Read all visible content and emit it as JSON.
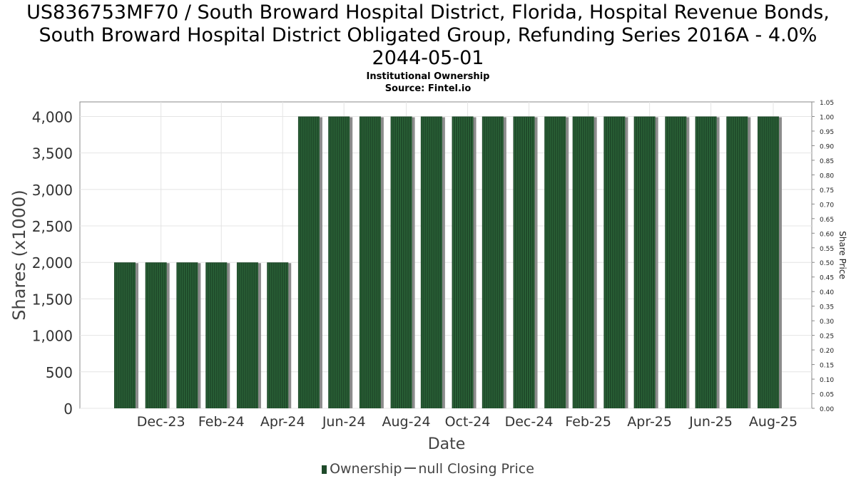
{
  "header": {
    "title_lines": [
      "US836753MF70 / South Broward Hospital District, Florida, Hospital Revenue Bonds,",
      "South Broward Hospital District Obligated Group, Refunding Series 2016A - 4.0%",
      "2044-05-01"
    ],
    "subtitle": "Institutional Ownership",
    "source": "Source: Fintel.io"
  },
  "legend": {
    "ownership": "Ownership",
    "closing_price": "null Closing Price"
  },
  "colors": {
    "bar_fill": "#1f4a2a",
    "bar_stripe": "#2f6b3c",
    "bar_shadow": "#8c8c8c",
    "grid": "#e4e4e4",
    "axis_text": "#333333"
  },
  "chart_data": {
    "type": "bar",
    "xlabel": "Date",
    "ylabel": "Shares (x1000)",
    "y2label": "Share Price",
    "ylim": [
      0,
      4200
    ],
    "y_ticks": [
      0,
      500,
      1000,
      1500,
      2000,
      2500,
      3000,
      3500,
      4000
    ],
    "y_tick_labels": [
      "0",
      "500",
      "1,000",
      "1,500",
      "2,000",
      "2,500",
      "3,000",
      "3,500",
      "4,000"
    ],
    "y2lim": [
      0,
      1.05
    ],
    "y2_tick_labels": [
      "0.00",
      "0.05",
      "0.10",
      "0.15",
      "0.20",
      "0.25",
      "0.30",
      "0.35",
      "0.40",
      "0.45",
      "0.50",
      "0.55",
      "0.60",
      "0.65",
      "0.70",
      "0.75",
      "0.80",
      "0.85",
      "0.90",
      "0.95",
      "1.00",
      "1.05"
    ],
    "x_tick_labels": [
      "Dec-23",
      "Feb-24",
      "Apr-24",
      "Jun-24",
      "Aug-24",
      "Oct-24",
      "Dec-24",
      "Feb-25",
      "Apr-25",
      "Jun-25",
      "Aug-25"
    ],
    "grid": true,
    "legend_position": "bottom",
    "series": [
      {
        "name": "Ownership",
        "x": [
          "2023-11-30",
          "2023-12-31",
          "2024-01-31",
          "2024-02-29",
          "2024-03-31",
          "2024-04-30",
          "2024-05-31",
          "2024-06-30",
          "2024-07-31",
          "2024-08-31",
          "2024-09-30",
          "2024-10-31",
          "2024-11-30",
          "2024-12-31",
          "2025-01-31",
          "2025-02-28",
          "2025-03-31",
          "2025-04-30",
          "2025-05-31",
          "2025-06-30",
          "2025-07-31",
          "2025-08-31"
        ],
        "values": [
          2000,
          2000,
          2000,
          2000,
          2000,
          2000,
          4000,
          4000,
          4000,
          4000,
          4000,
          4000,
          4000,
          4000,
          4000,
          4000,
          4000,
          4000,
          4000,
          4000,
          4000,
          4000
        ]
      }
    ]
  }
}
